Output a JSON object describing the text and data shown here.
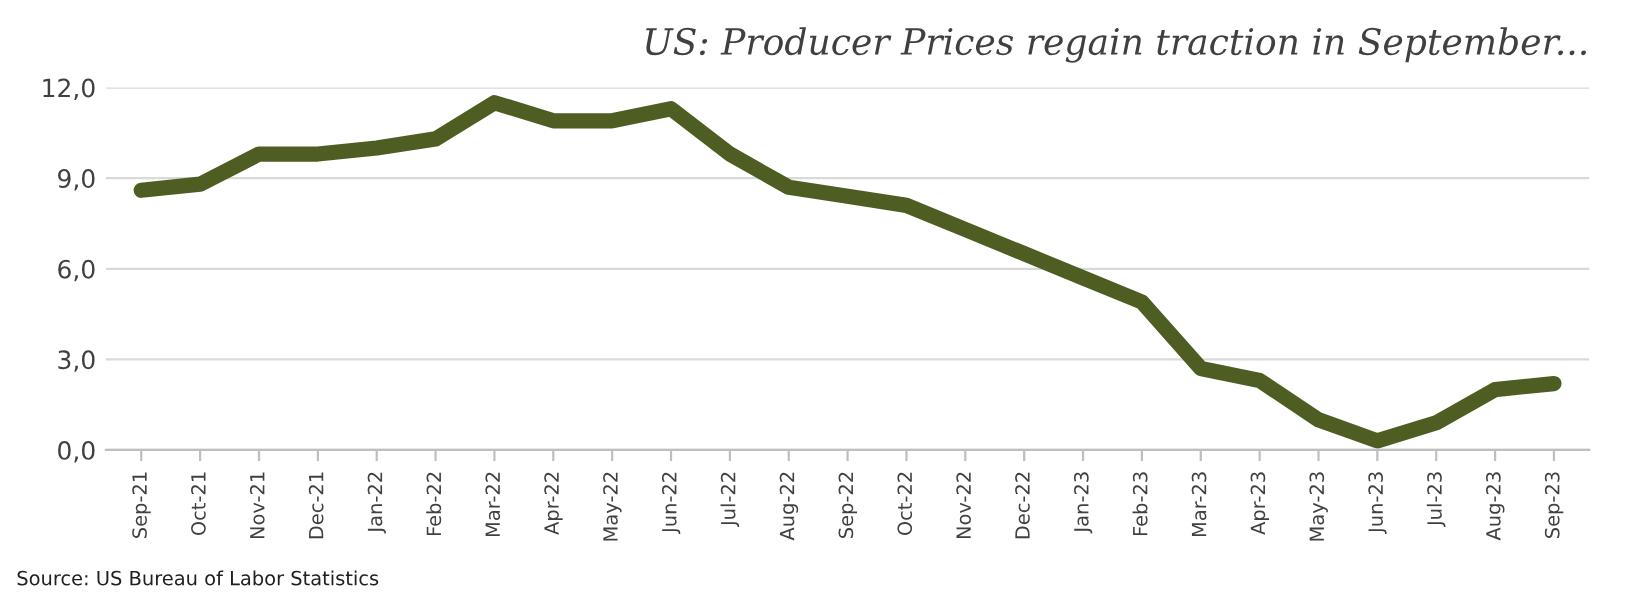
{
  "chart_data": {
    "type": "line",
    "title": "US: Producer Prices regain traction in September...",
    "categories": [
      "Sep-21",
      "Oct-21",
      "Nov-21",
      "Dec-21",
      "Jan-22",
      "Feb-22",
      "Mar-22",
      "Apr-22",
      "May-22",
      "Jun-22",
      "Jul-22",
      "Aug-22",
      "Sep-22",
      "Oct-22",
      "Nov-22",
      "Dec-22",
      "Jan-23",
      "Feb-23",
      "Mar-23",
      "Apr-23",
      "May-23",
      "Jun-23",
      "Jul-23",
      "Aug-23",
      "Sep-23"
    ],
    "series": [
      {
        "color": "#4e5e23",
        "values": [
          8.6,
          8.8,
          9.8,
          9.8,
          10.0,
          10.3,
          11.5,
          10.9,
          10.9,
          11.3,
          9.8,
          8.7,
          8.4,
          8.1,
          7.3,
          6.5,
          5.7,
          4.9,
          2.7,
          2.3,
          1.0,
          0.3,
          0.9,
          2.0,
          2.2
        ]
      }
    ],
    "ylim": [
      0,
      12
    ],
    "yticks": [
      {
        "value": 0,
        "label": "0,0"
      },
      {
        "value": 3,
        "label": "3,0"
      },
      {
        "value": 6,
        "label": "6,0"
      },
      {
        "value": 9,
        "label": "9,0"
      },
      {
        "value": 12,
        "label": "12,0"
      }
    ],
    "grid": "y",
    "legend": false,
    "marker": "none",
    "line_style": "solid",
    "annotations": [
      "Source: US Bureau of Labor Statistics"
    ]
  }
}
